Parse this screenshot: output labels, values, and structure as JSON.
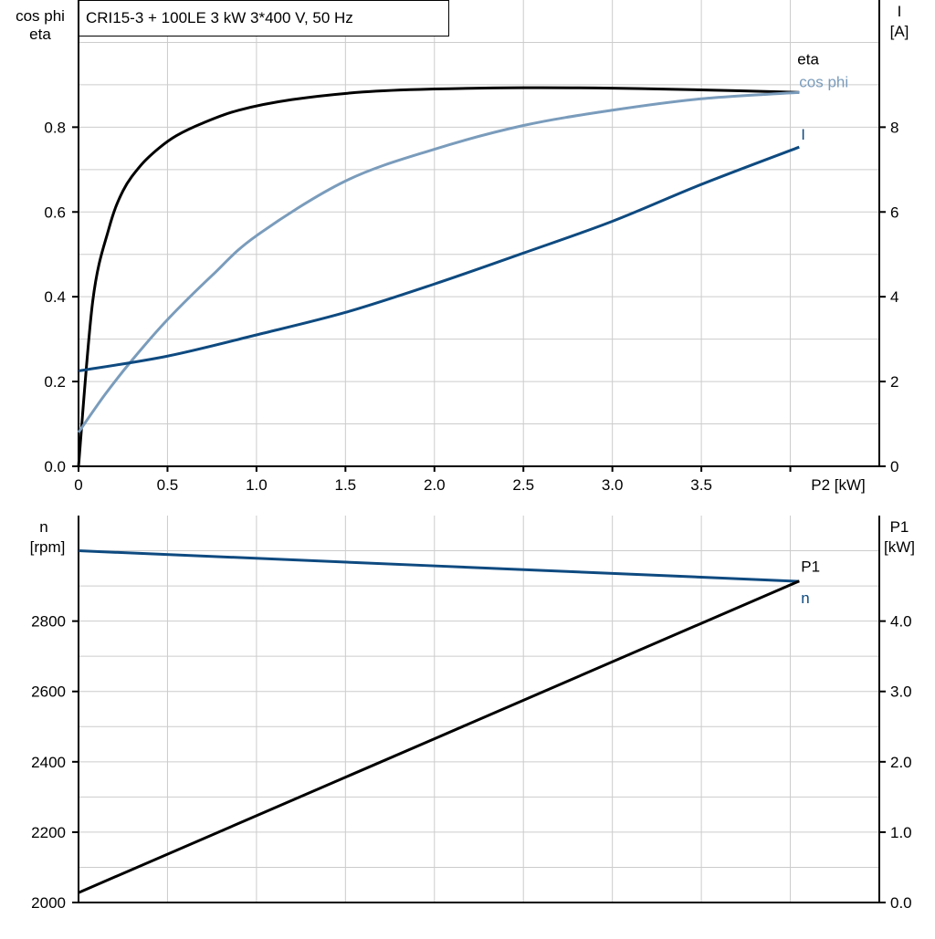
{
  "title": "CRI15-3 + 100LE   3 kW   3*400 V, 50 Hz",
  "colors": {
    "eta": "#000000",
    "cos_phi": "#7a9cbc",
    "I": "#0e4a80",
    "n": "#0e4a80",
    "P1": "#000000",
    "grid": "#cccccc"
  },
  "chart_data": [
    {
      "type": "line",
      "xlabel": "P2 [kW]",
      "xlim": [
        0,
        4.5
      ],
      "x_ticks": [
        "0",
        "0.5",
        "1.0",
        "1.5",
        "2.0",
        "2.5",
        "3.0",
        "3.5"
      ],
      "ylabel_left": [
        "cos phi",
        "eta"
      ],
      "ylim_left": [
        0,
        1.1
      ],
      "y_ticks_left": [
        "0.0",
        "0.2",
        "0.4",
        "0.6",
        "0.8"
      ],
      "ylabel_right": [
        "I",
        "[A]"
      ],
      "ylim_right": [
        0,
        11
      ],
      "y_ticks_right": [
        "0",
        "2",
        "4",
        "6",
        "8"
      ],
      "grid": true,
      "series": [
        {
          "name": "eta",
          "axis": "left",
          "color": "#000000",
          "x": [
            0,
            0.08,
            0.17,
            0.25,
            0.35,
            0.45,
            0.55,
            0.7,
            0.9,
            1.2,
            1.6,
            2.0,
            2.5,
            3.0,
            3.5,
            4.05
          ],
          "y": [
            0,
            0.39,
            0.56,
            0.65,
            0.71,
            0.75,
            0.78,
            0.81,
            0.84,
            0.865,
            0.883,
            0.89,
            0.893,
            0.892,
            0.888,
            0.882
          ]
        },
        {
          "name": "cos phi",
          "axis": "left",
          "color": "#7a9cbc",
          "x": [
            0,
            0.15,
            0.3,
            0.5,
            0.75,
            1.0,
            1.5,
            2.0,
            2.5,
            3.0,
            3.5,
            4.05
          ],
          "y": [
            0.08,
            0.17,
            0.25,
            0.346,
            0.45,
            0.544,
            0.673,
            0.748,
            0.804,
            0.84,
            0.867,
            0.882
          ]
        },
        {
          "name": "I",
          "axis": "right",
          "color": "#0e4a80",
          "x": [
            0,
            0.5,
            1.0,
            1.5,
            2.0,
            2.5,
            3.0,
            3.5,
            4.05
          ],
          "y": [
            2.25,
            2.6,
            3.1,
            3.63,
            4.3,
            5.03,
            5.78,
            6.65,
            7.53
          ]
        }
      ]
    },
    {
      "type": "line",
      "xlim": [
        0,
        4.5
      ],
      "ylabel_left": [
        "n",
        "[rpm]"
      ],
      "ylim_left": [
        2000,
        3100
      ],
      "y_ticks_left": [
        "2000",
        "2200",
        "2400",
        "2600",
        "2800"
      ],
      "ylabel_right": [
        "P1",
        "[kW]"
      ],
      "ylim_right": [
        0,
        5.5
      ],
      "y_ticks_right": [
        "0.0",
        "1.0",
        "2.0",
        "3.0",
        "4.0"
      ],
      "grid": true,
      "series": [
        {
          "name": "n",
          "axis": "left",
          "color": "#0e4a80",
          "x": [
            0,
            4.05
          ],
          "y": [
            3000,
            2913
          ]
        },
        {
          "name": "P1",
          "axis": "right",
          "color": "#000000",
          "x": [
            0,
            4.05
          ],
          "y": [
            0.14,
            4.57
          ]
        }
      ]
    }
  ]
}
